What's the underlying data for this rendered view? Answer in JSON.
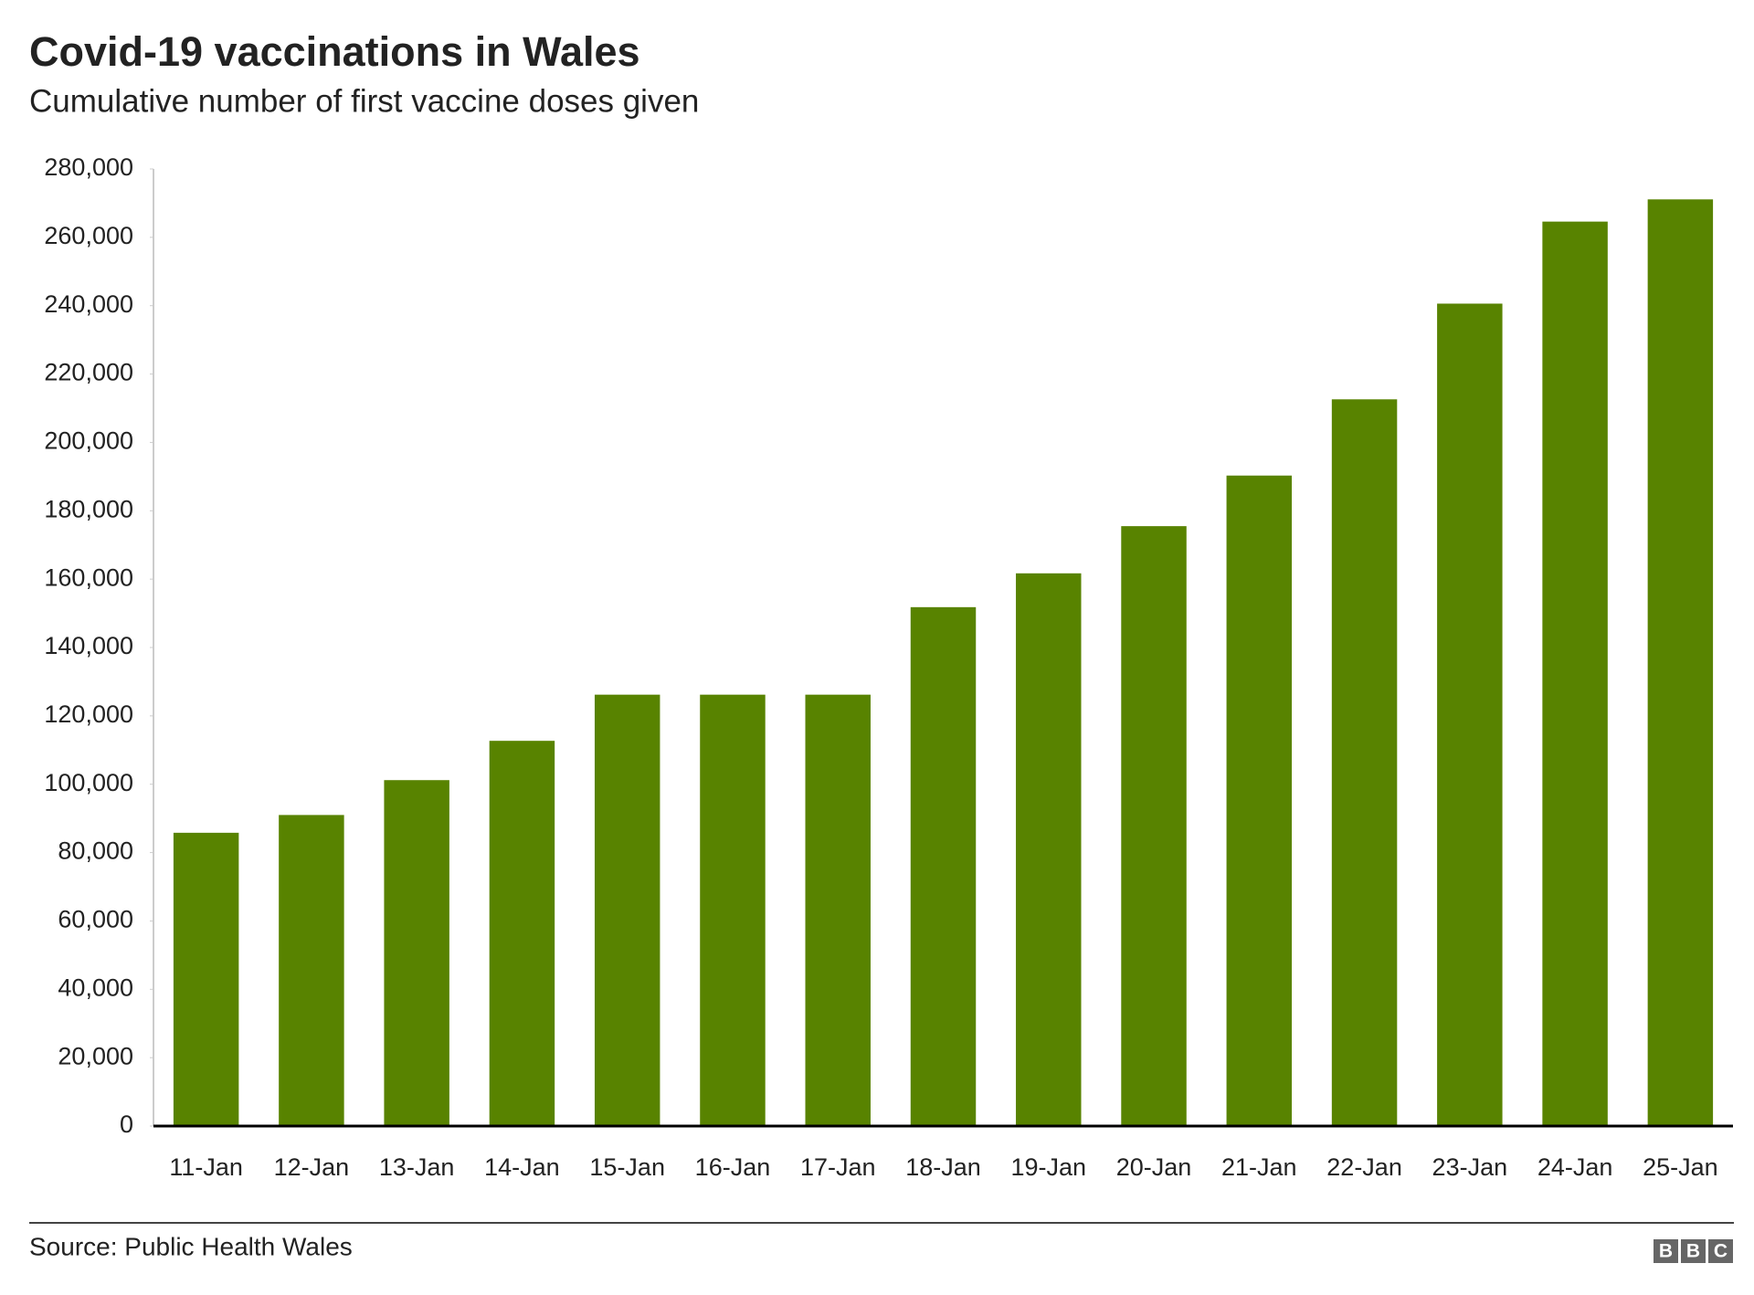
{
  "chart_data": {
    "type": "bar",
    "title": "Covid-19 vaccinations in Wales",
    "subtitle": "Cumulative number of first vaccine doses given",
    "categories": [
      "11-Jan",
      "12-Jan",
      "13-Jan",
      "14-Jan",
      "15-Jan",
      "16-Jan",
      "17-Jan",
      "18-Jan",
      "19-Jan",
      "20-Jan",
      "21-Jan",
      "22-Jan",
      "23-Jan",
      "24-Jan",
      "25-Jan"
    ],
    "values": [
      85800,
      91000,
      101200,
      112700,
      126200,
      126200,
      126200,
      151800,
      161700,
      175500,
      190300,
      212600,
      240600,
      264600,
      271100
    ],
    "color": "#588300",
    "ylim": [
      0,
      280000
    ],
    "yticks": [
      0,
      {
        "value": 20000,
        "label": "20,000"
      },
      {
        "value": 40000,
        "label": "40,000"
      },
      {
        "value": 60000,
        "label": "60,000"
      },
      {
        "value": 80000,
        "label": "80,000"
      },
      {
        "value": 100000,
        "label": "100,000"
      },
      {
        "value": 120000,
        "label": "120,000"
      },
      {
        "value": 140000,
        "label": "140,000"
      },
      {
        "value": 160000,
        "label": "160,000"
      },
      {
        "value": 180000,
        "label": "180,000"
      },
      {
        "value": 200000,
        "label": "200,000"
      },
      {
        "value": 220000,
        "label": "220,000"
      },
      {
        "value": 240000,
        "label": "240,000"
      },
      {
        "value": 260000,
        "label": "260,000"
      },
      {
        "value": {
          "value": 280000,
          "label": "280,000"
        },
        "label": "280,000"
      }
    ],
    "grid": false,
    "source": "Source: Public Health Wales",
    "logo": [
      "B",
      "B",
      "C"
    ]
  }
}
